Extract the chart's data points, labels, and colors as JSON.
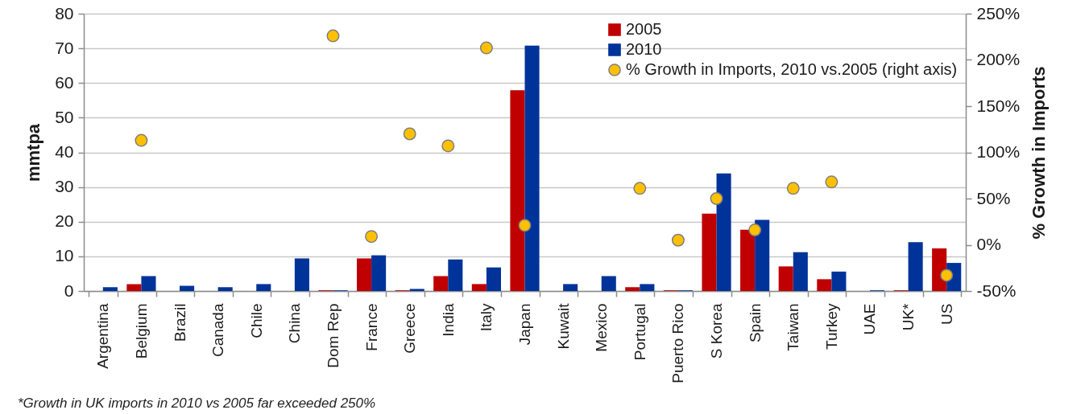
{
  "chart_data": {
    "type": "bar",
    "categories": [
      "Argentina",
      "Belgium",
      "Brazil",
      "Canada",
      "Chile",
      "China",
      "Dom Rep",
      "France",
      "Greece",
      "India",
      "Italy",
      "Japan",
      "Kuwait",
      "Mexico",
      "Portugal",
      "Puerto Rico",
      "S Korea",
      "Spain",
      "Taiwan",
      "Turkey",
      "UAE",
      "UK*",
      "US"
    ],
    "series": [
      {
        "name": "2005",
        "color": "#c00000",
        "values": [
          null,
          2.0,
          null,
          null,
          null,
          null,
          0.2,
          9.4,
          0.2,
          4.3,
          2.0,
          57.9,
          null,
          null,
          1.1,
          0.2,
          22.3,
          17.7,
          7.1,
          3.4,
          null,
          0.2,
          12.3
        ]
      },
      {
        "name": "2010",
        "color": "#003399",
        "values": [
          1.1,
          4.3,
          1.5,
          1.1,
          2.0,
          9.4,
          0.2,
          10.3,
          0.6,
          9.1,
          6.8,
          70.8,
          2.0,
          4.3,
          2.0,
          0.2,
          33.9,
          20.5,
          11.2,
          5.6,
          0.2,
          14.1,
          8.1
        ]
      },
      {
        "name": "% Growth in Imports, 2010 vs.2005 (right axis)",
        "type": "scatter",
        "axis": "y2",
        "color": "#ffc000",
        "values": [
          null,
          113,
          null,
          null,
          null,
          null,
          226,
          9,
          120,
          107,
          213,
          21,
          null,
          null,
          61,
          5,
          50,
          16,
          61,
          68,
          null,
          null,
          -33
        ]
      }
    ],
    "ylabel": "mmtpa",
    "y2label": "% Growth in Imports",
    "ylim": [
      0,
      80
    ],
    "yticks": [
      0,
      10,
      20,
      30,
      40,
      50,
      60,
      70,
      80
    ],
    "y2lim": [
      -50,
      250
    ],
    "y2ticks": [
      {
        "value": -50,
        "label": "-50%"
      },
      {
        "value": 0,
        "label": "0%"
      },
      {
        "value": 50,
        "label": "50%"
      },
      {
        "value": 100,
        "label": "100%"
      },
      {
        "value": 150,
        "label": "150%"
      },
      {
        "value": 200,
        "label": "200%"
      },
      {
        "value": 250,
        "label": "250%"
      }
    ],
    "grid": "y",
    "legend": "top right",
    "marker": "circle",
    "annotations": [
      "*Growth in UK imports in 2010 vs 2005 far exceeded 250%"
    ]
  }
}
